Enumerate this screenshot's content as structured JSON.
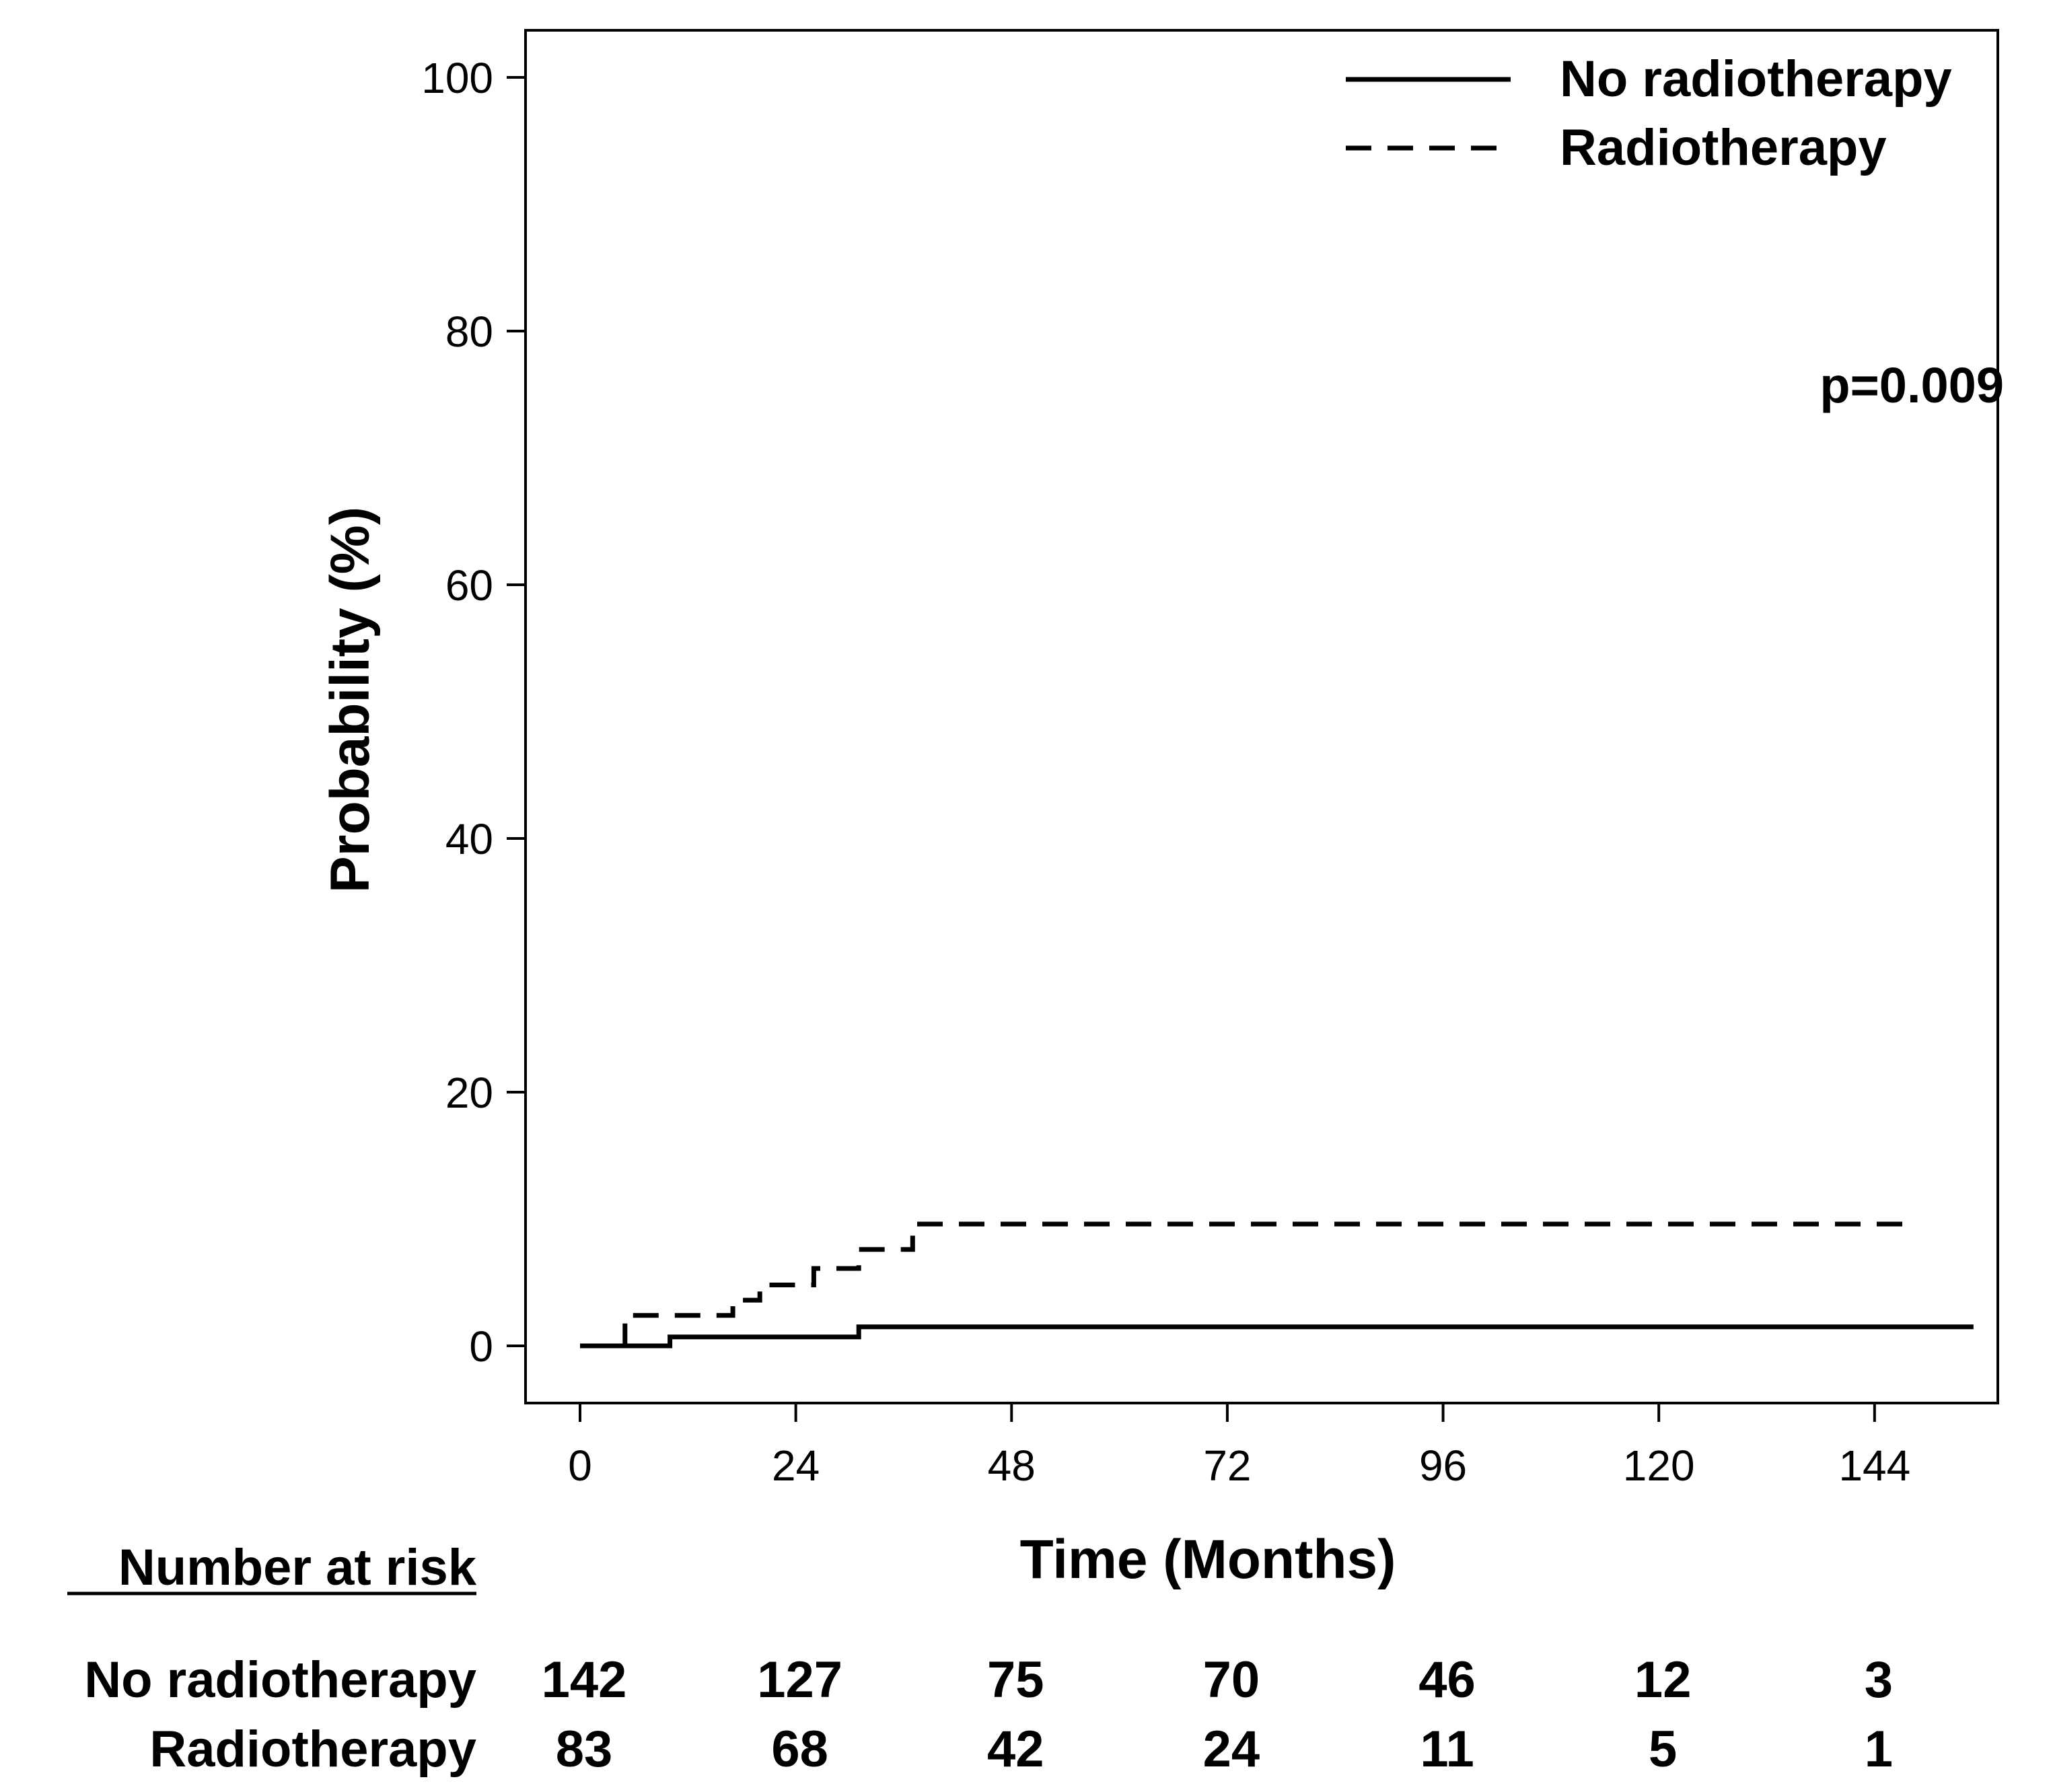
{
  "chart_data": {
    "type": "line",
    "subtype": "kaplan-meier-cumulative-incidence",
    "xlabel": "Time (Months)",
    "ylabel": "Probability (%)",
    "xlim": [
      0,
      156
    ],
    "ylim": [
      0,
      100
    ],
    "x_ticks": [
      0,
      24,
      48,
      72,
      96,
      120,
      144
    ],
    "y_ticks": [
      0,
      20,
      40,
      60,
      80,
      100
    ],
    "legend_position": "top-right",
    "annotation": "p=0.009",
    "series": [
      {
        "name": "No radiotherapy",
        "style": "solid",
        "x": [
          0,
          10,
          10,
          31,
          31,
          155
        ],
        "y": [
          0,
          0,
          0.7,
          0.7,
          1.5,
          1.5
        ]
      },
      {
        "name": "Radiotherapy",
        "style": "dashed",
        "x": [
          0,
          5,
          5,
          17,
          17,
          20,
          20,
          26,
          26,
          31,
          31,
          37,
          37,
          148
        ],
        "y": [
          0,
          0,
          2.4,
          2.4,
          3.6,
          3.6,
          4.8,
          4.8,
          6.1,
          6.1,
          7.6,
          7.6,
          9.6,
          9.6
        ]
      }
    ],
    "risk_table": {
      "title": "Number at risk",
      "times": [
        0,
        24,
        48,
        72,
        96,
        120,
        144
      ],
      "rows": [
        {
          "label": "No radiotherapy",
          "values": [
            "142",
            "127",
            "75",
            "70",
            "46",
            "12",
            "3"
          ]
        },
        {
          "label": "Radiotherapy",
          "values": [
            "83",
            "68",
            "42",
            "24",
            "11",
            "5",
            "1"
          ]
        }
      ]
    }
  }
}
